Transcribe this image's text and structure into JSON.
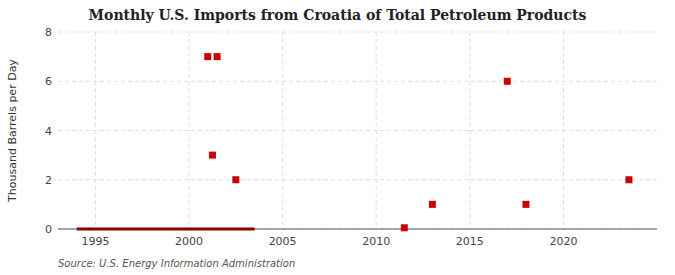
{
  "chart_data": {
    "type": "scatter",
    "title": "Monthly U.S. Imports from Croatia of Total Petroleum Products",
    "y_label": "Thousand Barrels per Day",
    "annotations": [
      "Source: U.S. Energy Information Administration"
    ],
    "xlim": [
      1993,
      2025
    ],
    "ylim": [
      0,
      8
    ],
    "xticks": [
      1995,
      2000,
      2005,
      2010,
      2015,
      2020
    ],
    "yticks": [
      0,
      2,
      4,
      6,
      8
    ],
    "grid": true,
    "series": [
      {
        "type": "line",
        "color": "#8b0000",
        "line_style": "solid",
        "x": [
          1994.0,
          2003.5
        ],
        "values": [
          0,
          0
        ]
      },
      {
        "type": "scatter",
        "color": "#cc0000",
        "marker": "square",
        "x": [
          2001.0,
          2001.5,
          2001.25,
          2002.5,
          2011.5,
          2013.0,
          2017.0,
          2018.0,
          2023.5
        ],
        "values": [
          7,
          7,
          3,
          2,
          0.05,
          1,
          6,
          1,
          2
        ]
      }
    ]
  }
}
